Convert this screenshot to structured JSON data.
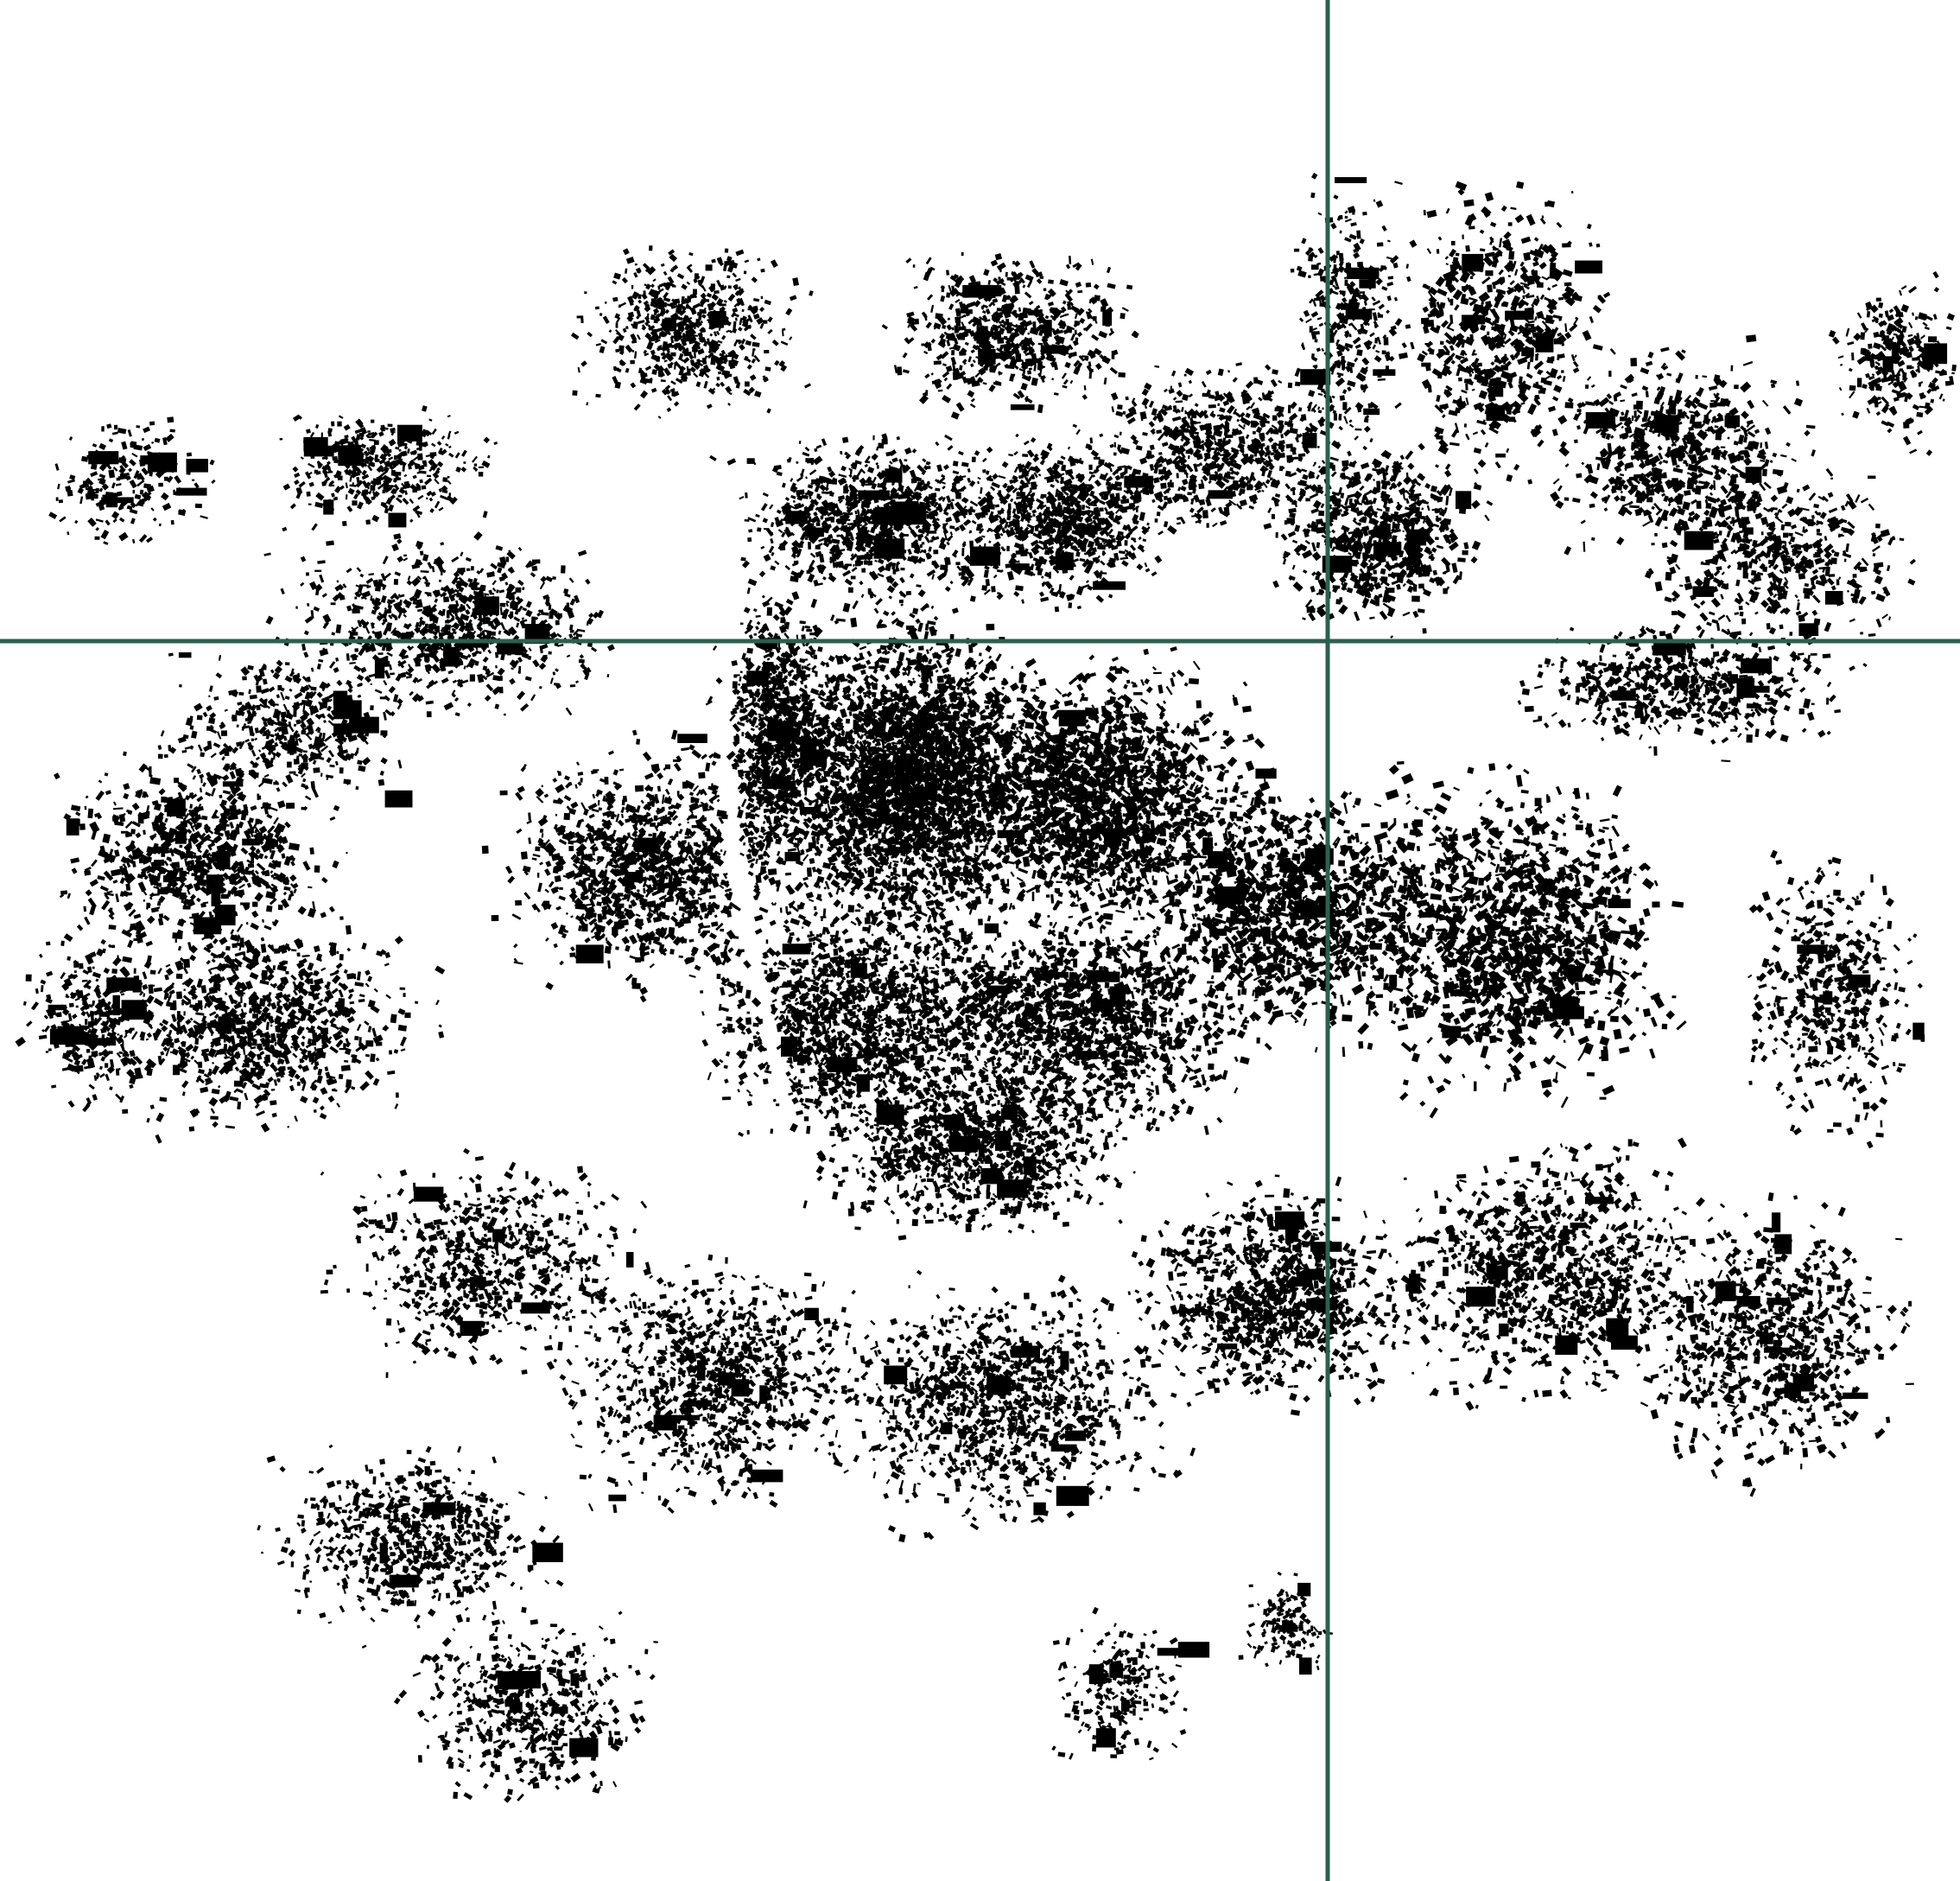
{
  "map": {
    "style": "figure-ground building footprints",
    "background_color": "#ffffff",
    "building_color": "#000000",
    "grid_line_color": "#2e5e50",
    "grid": {
      "type": "quadrant crosshair",
      "lines": [
        "vertical",
        "horizontal"
      ]
    },
    "visible_text": []
  }
}
